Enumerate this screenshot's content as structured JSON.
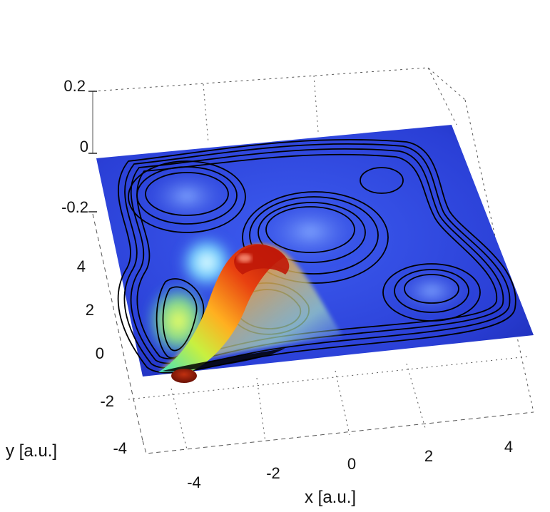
{
  "chart_data": {
    "type": "surface",
    "title": "",
    "xlabel": "x [a.u.]",
    "ylabel": "y [a.u.]",
    "zlabel": "",
    "x_ticks": [
      "-4",
      "-2",
      "0",
      "2",
      "4"
    ],
    "y_ticks": [
      "-4",
      "-2",
      "0",
      "2",
      "4"
    ],
    "z_ticks": [
      "0.2",
      "0",
      "-0.2"
    ],
    "xlim": [
      -5,
      5
    ],
    "ylim": [
      -4,
      5
    ],
    "zlim": [
      -0.3,
      0.25
    ],
    "grid": true,
    "colormap": "jet",
    "surface_peak": {
      "x": -2.3,
      "y": 3.0,
      "z": 0.15
    },
    "surface_trough": {
      "x": -4.2,
      "y": -0.2,
      "z": -0.05
    },
    "potential_wells": [
      {
        "x": -3.5,
        "y": 3.5
      },
      {
        "x": 0.0,
        "y": 2.5
      },
      {
        "x": 3.0,
        "y": 2.0
      },
      {
        "x": 2.5,
        "y": 4.5
      },
      {
        "x": -3.5,
        "y": 1.0
      }
    ],
    "colors": {
      "plane": "#2a40d8",
      "contour": "#000000",
      "peak": "#d01a10"
    }
  }
}
